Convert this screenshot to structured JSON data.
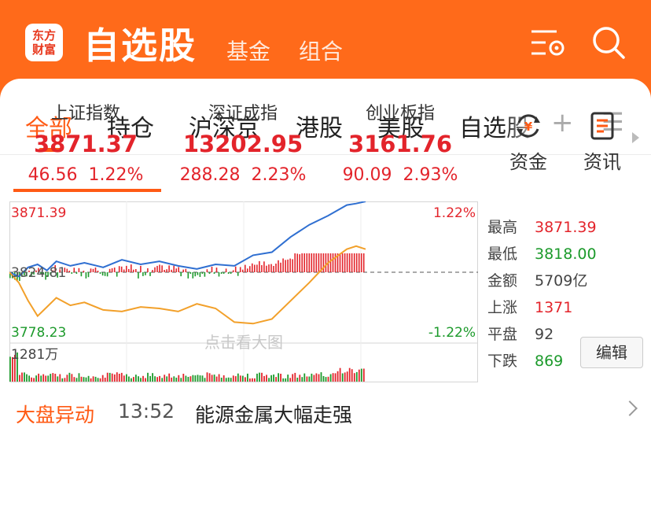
{
  "header": {
    "logo_line1": "东方",
    "logo_line2": "财富",
    "title": "自选股",
    "links": [
      "基金",
      "组合"
    ],
    "colors": {
      "bg": "#ff6a1a"
    }
  },
  "tabs": [
    {
      "label": "全部",
      "active": true
    },
    {
      "label": "持仓"
    },
    {
      "label": "沪深京"
    },
    {
      "label": "港股"
    },
    {
      "label": "美股"
    },
    {
      "label": "自选股"
    }
  ],
  "indices": [
    {
      "name": "上证指数",
      "value": "3871.37",
      "change": "46.56",
      "pct": "1.22%"
    },
    {
      "name": "深证成指",
      "value": "13202.95",
      "change": "288.28",
      "pct": "2.23%"
    },
    {
      "name": "创业板指",
      "value": "3161.76",
      "change": "90.09",
      "pct": "2.93%"
    }
  ],
  "side_buttons": [
    {
      "label": "资金",
      "icon": "yuan-cycle-icon"
    },
    {
      "label": "资讯",
      "icon": "news-doc-icon"
    }
  ],
  "chart_data": {
    "type": "line",
    "x": [
      0,
      0.02,
      0.04,
      0.06,
      0.08,
      0.1,
      0.13,
      0.16,
      0.2,
      0.24,
      0.28,
      0.32,
      0.36,
      0.4,
      0.44,
      0.48,
      0.52,
      0.56,
      0.6,
      0.64,
      0.68,
      0.72,
      0.74,
      0.76
    ],
    "series": [
      {
        "name": "",
        "color": "#2f6fd1",
        "values": [
          3824.81,
          3822,
          3828,
          3830,
          3826,
          3832,
          3829,
          3831,
          3828,
          3833,
          3830,
          3832,
          3829,
          3827,
          3830,
          3829,
          3836,
          3838,
          3848,
          3856,
          3862,
          3869,
          3870,
          3871.37
        ]
      },
      {
        "name": "",
        "color": "#f2a02a",
        "values": [
          3824.81,
          3818,
          3806,
          3796,
          3802,
          3808,
          3803,
          3805,
          3800,
          3799,
          3802,
          3801,
          3799,
          3804,
          3801,
          3792,
          3791,
          3794,
          3806,
          3818,
          3831,
          3840,
          3842,
          3840
        ]
      }
    ],
    "base_label": "3824.81",
    "y_top_label": "3871.39",
    "y_bottom_label": "3778.23",
    "pct_top_label": "1.22%",
    "pct_bottom_label": "-1.22%",
    "volume_label": "1281万",
    "watermark": "点击看大图",
    "ylim": [
      3778.23,
      3871.39
    ]
  },
  "stats": [
    {
      "key": "最高",
      "value": "3871.39",
      "color": "#e3242b"
    },
    {
      "key": "最低",
      "value": "3818.00",
      "color": "#1c9a2b"
    },
    {
      "key": "金额",
      "value": "5709亿",
      "color": "#444444"
    },
    {
      "key": "上涨",
      "value": "1371",
      "color": "#e3242b"
    },
    {
      "key": "平盘",
      "value": "92",
      "color": "#444444"
    },
    {
      "key": "下跌",
      "value": "869",
      "color": "#1c9a2b"
    }
  ],
  "edit_label": "编辑",
  "news": {
    "tag": "大盘异动",
    "time": "13:52",
    "headline": "能源金属大幅走强"
  }
}
